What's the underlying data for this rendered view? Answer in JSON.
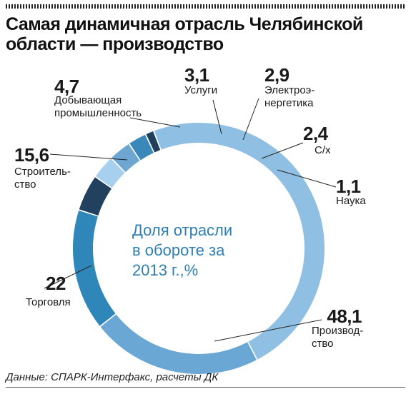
{
  "title_lines": [
    "Самая динамичная отрасль Челябинской",
    "области — производство"
  ],
  "source": "Данные: СПАРК-Интерфакс, расчеты ДК",
  "chart_data": {
    "type": "pie",
    "center_lines": [
      "Доля отрасли",
      "в обороте за",
      "2013 г.,%"
    ],
    "slices": [
      {
        "label_lines": [
          "Производ-",
          "ство"
        ],
        "value": 48.1,
        "value_text": "48,1",
        "color": "#8fbfe3"
      },
      {
        "label_lines": [
          "Торговля"
        ],
        "value": 22,
        "value_text": "22",
        "color": "#6aa7d4"
      },
      {
        "label_lines": [
          "Строитель-",
          "ство"
        ],
        "value": 15.6,
        "value_text": "15,6",
        "color": "#2f86b8"
      },
      {
        "label_lines": [
          "Добывающая",
          "промышленность"
        ],
        "value": 4.7,
        "value_text": "4,7",
        "color": "#22415e"
      },
      {
        "label_lines": [
          "Услуги"
        ],
        "value": 3.1,
        "value_text": "3,1",
        "color": "#a7d0ee"
      },
      {
        "label_lines": [
          "Электроэ-",
          "нергетика"
        ],
        "value": 2.9,
        "value_text": "2,9",
        "color": "#6ea6d2"
      },
      {
        "label_lines": [
          "С/х"
        ],
        "value": 2.4,
        "value_text": "2,4",
        "color": "#3a87b9"
      },
      {
        "label_lines": [
          "Наука"
        ],
        "value": 1.1,
        "value_text": "1,1",
        "color": "#1f3f5c"
      }
    ]
  }
}
